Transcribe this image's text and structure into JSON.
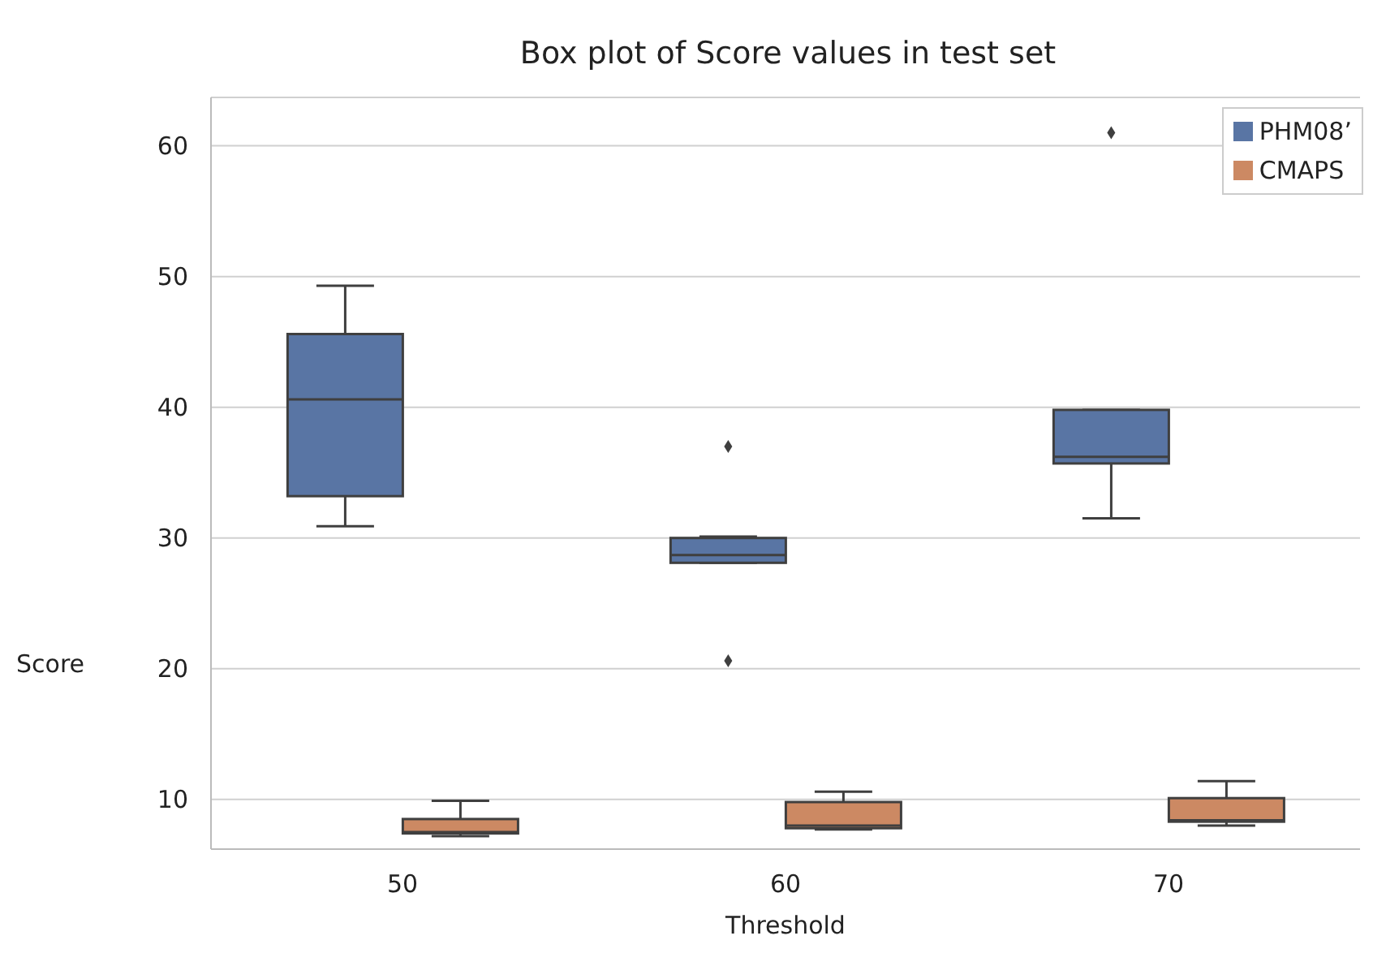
{
  "chart_data": {
    "type": "box",
    "title": "Box plot of Score values in test set",
    "xlabel": "Threshold",
    "ylabel": "Score",
    "categories": [
      "50",
      "60",
      "70"
    ],
    "series": [
      {
        "name": "PHM08’",
        "color": "#5975a4",
        "boxes": [
          {
            "low": 30.9,
            "q1": 33.2,
            "median": 40.6,
            "q3": 45.6,
            "high": 49.3
          },
          {
            "low": 28.1,
            "q1": 28.1,
            "median": 28.7,
            "q3": 30.0,
            "high": 30.1,
            "outliers": [
              37.0,
              20.6
            ]
          },
          {
            "low": 31.5,
            "q1": 35.7,
            "median": 36.2,
            "q3": 39.8,
            "high": 39.8,
            "outliers": [
              61.0
            ]
          }
        ]
      },
      {
        "name": "CMAPS",
        "color": "#cc8963",
        "boxes": [
          {
            "low": 7.2,
            "q1": 7.4,
            "median": 7.5,
            "q3": 8.5,
            "high": 9.9
          },
          {
            "low": 7.7,
            "q1": 7.8,
            "median": 8.0,
            "q3": 9.8,
            "high": 10.6
          },
          {
            "low": 8.0,
            "q1": 8.3,
            "median": 8.4,
            "q3": 10.1,
            "high": 11.4
          }
        ]
      }
    ],
    "ylim": [
      6.2,
      63.7
    ],
    "yticks": [
      10,
      20,
      30,
      40,
      50,
      60
    ],
    "grid": "y",
    "legend": "top right"
  }
}
